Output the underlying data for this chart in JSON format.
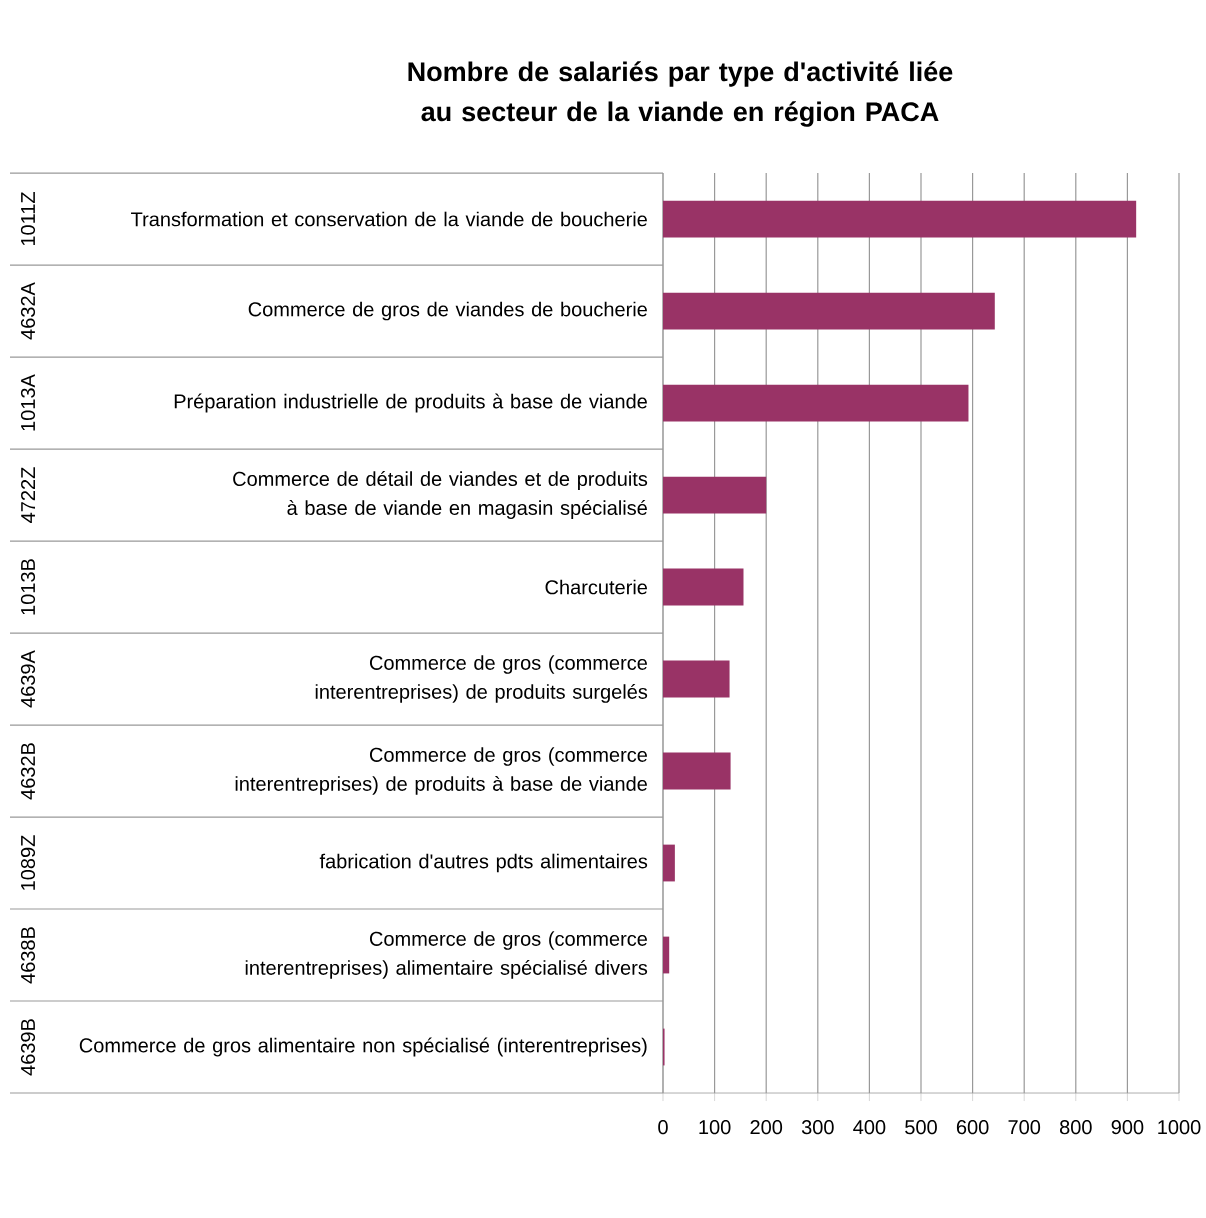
{
  "chart_data": {
    "type": "bar",
    "orientation": "horizontal",
    "title": "Nombre de salariés par type d'activité liée au secteur de la viande en région PACA",
    "categories": [
      "Transformation et conservation de la viande de boucherie",
      "Commerce de gros de viandes de boucherie",
      "Préparation industrielle de produits à base de viande",
      "Commerce de détail de viandes et de produits à base de viande en magasin spécialisé",
      "Charcuterie",
      "Commerce de gros (commerce interentreprises) de produits surgelés",
      "Commerce de gros (commerce interentreprises) de produits à base de viande",
      "fabrication d'autres pdts alimentaires",
      "Commerce de gros (commerce interentreprises) alimentaire spécialisé divers",
      "Commerce de gros alimentaire non spécialisé (interentreprises)"
    ],
    "annotations": [
      "1011Z",
      "4632A",
      "1013A",
      "4722Z",
      "1013B",
      "4639A",
      "4632B",
      "1089Z",
      "4638B",
      "4639B"
    ],
    "values": [
      917,
      643,
      592,
      200,
      156,
      129,
      131,
      23,
      12,
      3
    ],
    "color": "#993366",
    "xlim": [
      0,
      1000
    ],
    "xticks": [
      0,
      100,
      200,
      300,
      400,
      500,
      600,
      700,
      800,
      900,
      1000
    ],
    "grid": "x"
  }
}
